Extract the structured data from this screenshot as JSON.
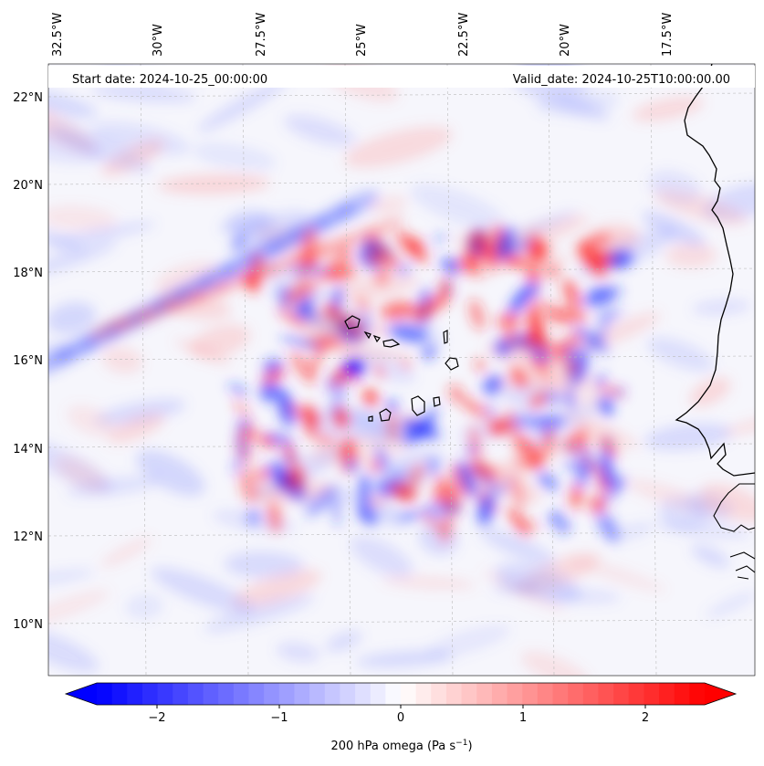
{
  "map": {
    "start_label": "Start date: 2024-10-25_00:00:00",
    "valid_label": "Valid_date: 2024-10-25T10:00:00.00",
    "top_lon_labels": [
      "32.5°W",
      "30°W",
      "27.5°W",
      "25°W",
      "22.5°W",
      "20°W",
      "17.5°W"
    ],
    "left_lat_labels": [
      "22°N",
      "20°N",
      "18°N",
      "16°N",
      "14°N",
      "12°N",
      "10°N"
    ]
  },
  "colorbar": {
    "label_main": "200 hPa omega (Pa s",
    "label_exp": "−1",
    "label_close": ")",
    "ticks": [
      "−2",
      "−1",
      "0",
      "1",
      "2"
    ],
    "min": -2.75,
    "max": 2.75,
    "colors": {
      "negative": "#0000ff",
      "zero": "#ffffff",
      "positive": "#ff0000"
    }
  },
  "colors": {
    "coastline": "#000000",
    "grid": "#bbbbbb"
  }
}
